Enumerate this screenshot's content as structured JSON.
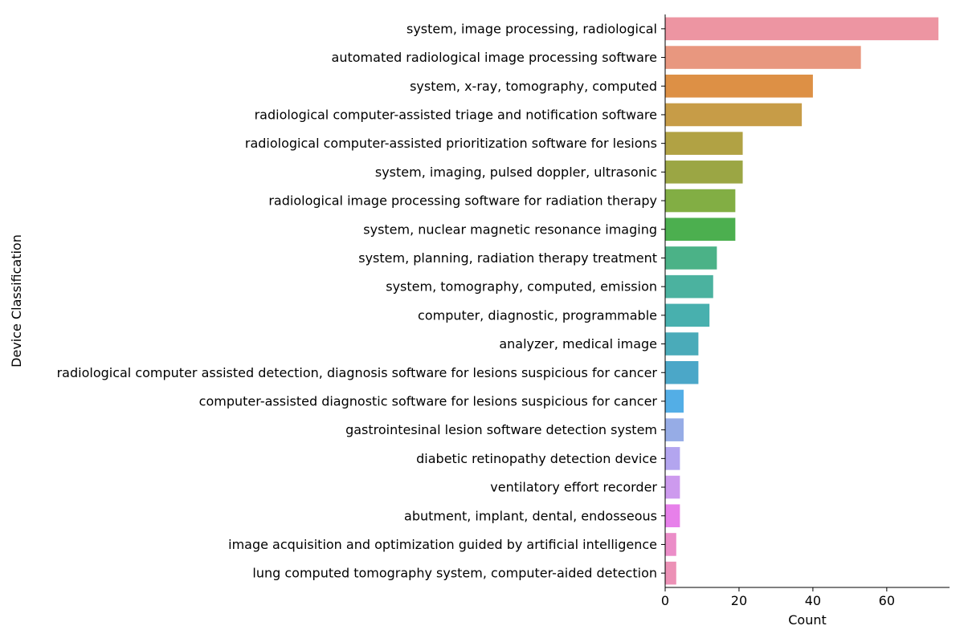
{
  "chart_data": {
    "type": "bar",
    "orientation": "horizontal",
    "categories": [
      "system, image processing, radiological",
      "automated radiological image processing software",
      "system, x-ray, tomography, computed",
      "radiological computer-assisted triage and notification software",
      "radiological computer-assisted prioritization software for lesions",
      "system, imaging, pulsed doppler, ultrasonic",
      "radiological image processing software for radiation therapy",
      "system, nuclear magnetic resonance imaging",
      "system, planning, radiation therapy treatment",
      "system, tomography, computed, emission",
      "computer, diagnostic, programmable",
      "analyzer, medical image",
      "radiological computer assisted detection, diagnosis software for lesions suspicious for cancer",
      "computer-assisted diagnostic software for lesions suspicious for cancer",
      "gastrointesinal lesion software detection system",
      "diabetic retinopathy detection device",
      "ventilatory effort recorder",
      "abutment, implant, dental, endosseous",
      "image acquisition and optimization guided by artificial intelligence",
      "lung computed tomography system, computer-aided detection"
    ],
    "values": [
      74,
      53,
      40,
      37,
      21,
      21,
      19,
      19,
      14,
      13,
      12,
      9,
      9,
      5,
      5,
      4,
      4,
      4,
      3,
      3
    ],
    "colors": [
      "#ed95a2",
      "#e8977f",
      "#dd9045",
      "#c79c47",
      "#b1a244",
      "#9ba644",
      "#82ae44",
      "#4caf4f",
      "#4bb287",
      "#4bb29f",
      "#48b0ae",
      "#4aabb9",
      "#4ba7c8",
      "#53aee6",
      "#96ace6",
      "#b3a5ef",
      "#cd9aee",
      "#e780ea",
      "#eb8dc8",
      "#ec91b6"
    ],
    "xlabel": "Count",
    "ylabel": "Device Classification",
    "xlim": [
      0,
      77
    ],
    "xticks": [
      0,
      20,
      40,
      60
    ],
    "grid": false
  }
}
